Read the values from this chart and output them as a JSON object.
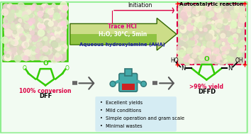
{
  "bg_color": "#f2fbf2",
  "border_color": "#90ee90",
  "title_top_right": "Autocatalytic reaction",
  "arrow_label_top": "Initiation",
  "arrow_label_trace": "Trace HCl",
  "arrow_label_main": "H₂O, 30°C, 5min",
  "arrow_label_aha": "Aqueous hydroxylamine (AHA)",
  "label_dff_top": "100% conversion",
  "label_dff_bot": "DFF",
  "label_dffd_top": ">99% yield",
  "label_dffd_bot": "DFFD",
  "bullet_items": [
    "Excellent yields",
    "Mild conditions",
    "Simple operation and gram scale",
    "Minimal wastes"
  ],
  "red_color": "#dd0044",
  "green_mol": "#33cc00",
  "blue_color": "#1a1aaa",
  "pink_color": "#dd0077",
  "arrow_green_light": "#ccdd88",
  "arrow_green_dark": "#55aa00",
  "arrow_border": "#336600",
  "bullet_bg": "#cce8f4",
  "photo_left_bg": "#ddddc0",
  "photo_right_bg": "#d8d8c0",
  "teal": "#44aaaa"
}
